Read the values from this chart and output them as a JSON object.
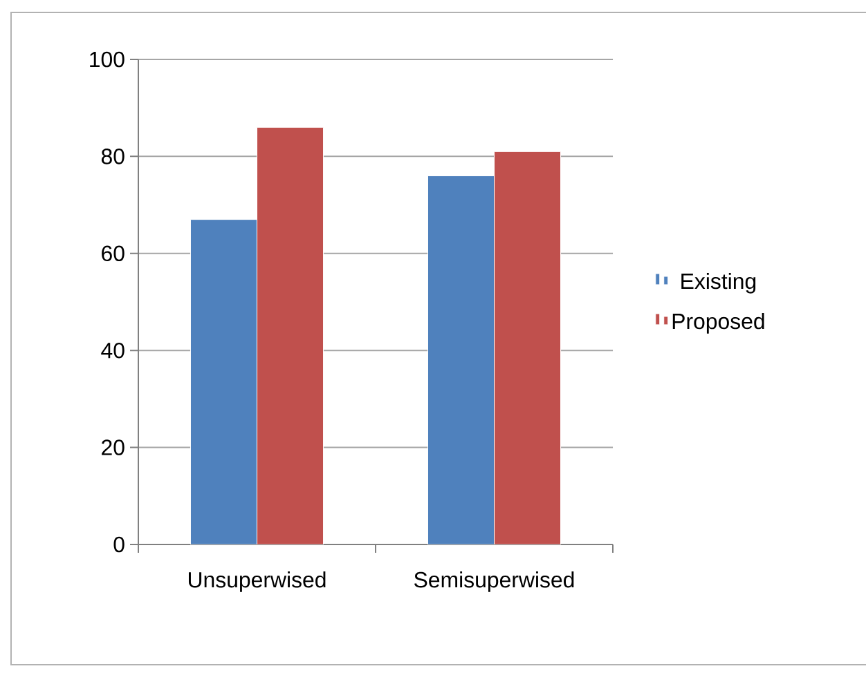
{
  "chart_data": {
    "type": "bar",
    "categories": [
      "Unsuperwised",
      "Semisuperwised"
    ],
    "series": [
      {
        "name": "Existing",
        "color": "#4f81bd",
        "values": [
          67,
          76
        ]
      },
      {
        "name": "Proposed",
        "color": "#c0504d",
        "values": [
          86,
          81
        ]
      }
    ],
    "ylim": [
      0,
      100
    ],
    "yticks": [
      0,
      20,
      40,
      60,
      80,
      100
    ],
    "grid": "y",
    "legend": "right"
  }
}
